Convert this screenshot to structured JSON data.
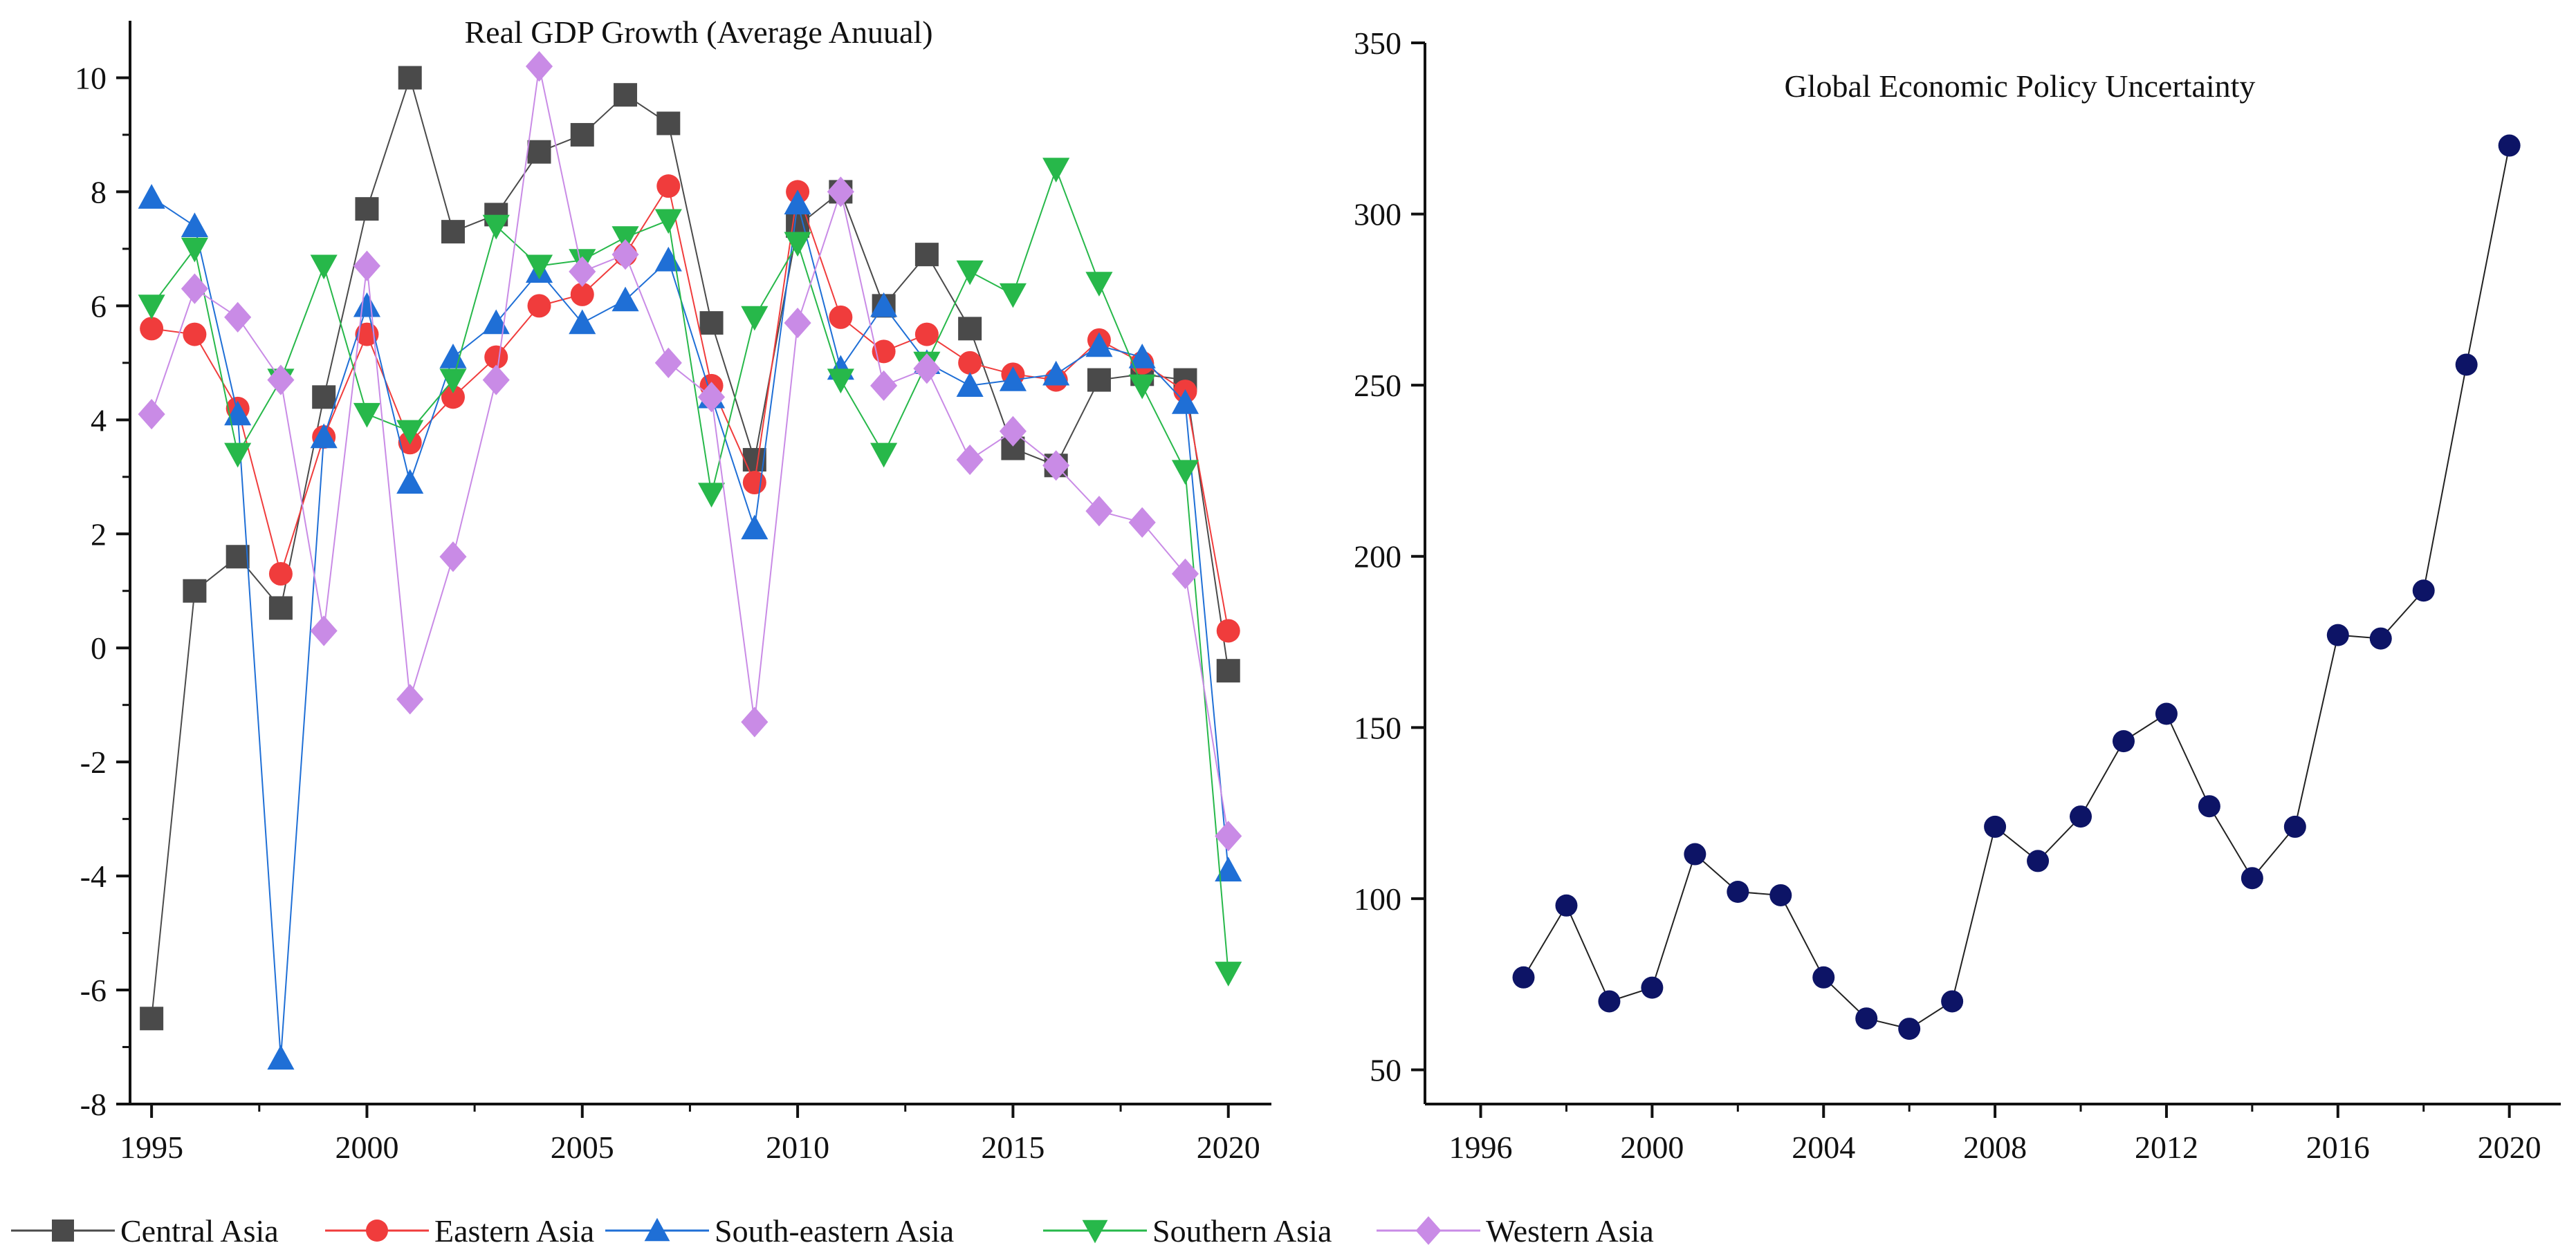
{
  "colors": {
    "axis": "#111111",
    "central": "#4a4a4a",
    "eastern": "#f03c3c",
    "southeastern": "#1f6fd6",
    "southern": "#27b84a",
    "western": "#c98be6",
    "uncertainty": "#0d1466"
  },
  "chart_data": [
    {
      "type": "line",
      "title": "Real GDP Growth  (Average Anuual)",
      "xlabel": "",
      "ylabel": "",
      "xlim": [
        1994.5,
        2021
      ],
      "ylim": [
        -8,
        11
      ],
      "x_ticks": [
        1995,
        2000,
        2005,
        2010,
        2015,
        2020
      ],
      "x_tick_labels": [
        "1995",
        "2000",
        "2005",
        "2010",
        "2015",
        "2020"
      ],
      "y_ticks": [
        -8,
        -6,
        -4,
        -2,
        0,
        2,
        4,
        6,
        8,
        10
      ],
      "y_tick_labels": [
        "-8",
        "-6",
        "-4",
        "-2",
        "0",
        "2",
        "4",
        "6",
        "8",
        "10"
      ],
      "legend_position": "bottom",
      "x": [
        1995,
        1996,
        1997,
        1998,
        1999,
        2000,
        2001,
        2002,
        2003,
        2004,
        2005,
        2006,
        2007,
        2008,
        2009,
        2010,
        2011,
        2012,
        2013,
        2014,
        2015,
        2016,
        2017,
        2018,
        2019,
        2020
      ],
      "series": [
        {
          "name": "Central Asia",
          "marker": "square",
          "color_key": "central",
          "values": [
            -6.5,
            1.0,
            1.6,
            0.7,
            4.4,
            7.7,
            10.0,
            7.3,
            7.6,
            8.7,
            9.0,
            9.7,
            9.2,
            5.7,
            3.3,
            7.4,
            8.0,
            6.0,
            6.9,
            5.6,
            3.5,
            3.2,
            4.7,
            4.8,
            4.7,
            -0.4
          ]
        },
        {
          "name": "Eastern Asia",
          "marker": "circle",
          "color_key": "eastern",
          "values": [
            5.6,
            5.5,
            4.2,
            1.3,
            3.7,
            5.5,
            3.6,
            4.4,
            5.1,
            6.0,
            6.2,
            6.9,
            8.1,
            4.6,
            2.9,
            8.0,
            5.8,
            5.2,
            5.5,
            5.0,
            4.8,
            4.7,
            5.4,
            5.0,
            4.5,
            0.3
          ]
        },
        {
          "name": "South-eastern Asia",
          "marker": "triangle-up",
          "color_key": "southeastern",
          "values": [
            7.9,
            7.4,
            4.1,
            -7.2,
            3.7,
            6.0,
            2.9,
            5.1,
            5.7,
            6.6,
            5.7,
            6.1,
            6.8,
            4.4,
            2.1,
            7.8,
            4.9,
            6.0,
            5.0,
            4.6,
            4.7,
            4.8,
            5.3,
            5.1,
            4.3,
            -3.9
          ]
        },
        {
          "name": "Southern Asia",
          "marker": "triangle-down",
          "color_key": "southern",
          "values": [
            6.0,
            7.0,
            3.4,
            4.7,
            6.7,
            4.1,
            3.8,
            4.7,
            7.4,
            6.7,
            6.8,
            7.2,
            7.5,
            2.7,
            5.8,
            7.1,
            4.7,
            3.4,
            5.0,
            6.6,
            6.2,
            8.4,
            6.4,
            4.6,
            3.1,
            -5.7
          ]
        },
        {
          "name": "Western Asia",
          "marker": "diamond",
          "color_key": "western",
          "values": [
            4.1,
            6.3,
            5.8,
            4.7,
            0.3,
            6.7,
            -0.9,
            1.6,
            4.7,
            10.2,
            6.6,
            6.9,
            5.0,
            4.4,
            -1.3,
            5.7,
            8.0,
            4.6,
            4.9,
            3.3,
            3.8,
            3.2,
            2.4,
            2.2,
            1.3,
            -3.3
          ]
        }
      ]
    },
    {
      "type": "line",
      "title": "Global Economic Policy Uncertainty",
      "xlabel": "",
      "ylabel": "",
      "xlim": [
        1994.7,
        2021.2
      ],
      "ylim": [
        40,
        350
      ],
      "x_ticks": [
        1996,
        2000,
        2004,
        2008,
        2012,
        2016,
        2020
      ],
      "x_tick_labels": [
        "1996",
        "2000",
        "2004",
        "2008",
        "2012",
        "2016",
        "2020"
      ],
      "y_ticks": [
        50,
        100,
        150,
        200,
        250,
        300,
        350
      ],
      "y_tick_labels": [
        "50",
        "100",
        "150",
        "200",
        "250",
        "300",
        "350"
      ],
      "x": [
        1997,
        1998,
        1999,
        2000,
        2001,
        2002,
        2003,
        2004,
        2005,
        2006,
        2007,
        2008,
        2009,
        2010,
        2011,
        2012,
        2013,
        2014,
        2015,
        2016,
        2017,
        2018,
        2019,
        2020
      ],
      "series": [
        {
          "name": "Global Economic Policy Uncertainty",
          "marker": "circle",
          "color_key": "uncertainty",
          "values": [
            77,
            98,
            70,
            74,
            113,
            102,
            101,
            77,
            65,
            62,
            70,
            121,
            111,
            124,
            146,
            154,
            127,
            106,
            121,
            177,
            176,
            190,
            256,
            320
          ]
        }
      ]
    }
  ]
}
